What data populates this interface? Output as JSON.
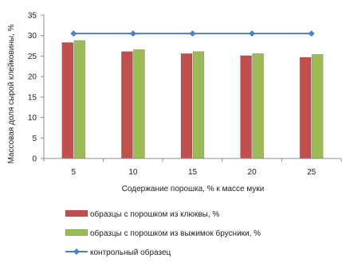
{
  "chart_data": {
    "type": "bar",
    "categories": [
      "5",
      "10",
      "15",
      "20",
      "25"
    ],
    "series": [
      {
        "name": "образцы с порошком из клюквы, %",
        "kind": "bar",
        "color": "#c0504d",
        "values": [
          28.3,
          26.1,
          25.6,
          25.1,
          24.7
        ]
      },
      {
        "name": "образцы с порошком из выжимок брусники, %",
        "kind": "bar",
        "color": "#9bbb59",
        "values": [
          28.8,
          26.6,
          26.1,
          25.6,
          25.4
        ]
      },
      {
        "name": "контрольный образец",
        "kind": "line",
        "color": "#4f81bd",
        "values": [
          30.5,
          30.5,
          30.5,
          30.5,
          30.5
        ]
      }
    ],
    "xlabel": "Содержание порошка, % к массе муки",
    "ylabel": "Массовая доля сырой клейковины, %",
    "ylim": [
      0,
      35
    ],
    "yticks": [
      "0",
      "5",
      "10",
      "15",
      "20",
      "25",
      "30",
      "35"
    ],
    "grid": false,
    "legend_position": "bottom"
  }
}
